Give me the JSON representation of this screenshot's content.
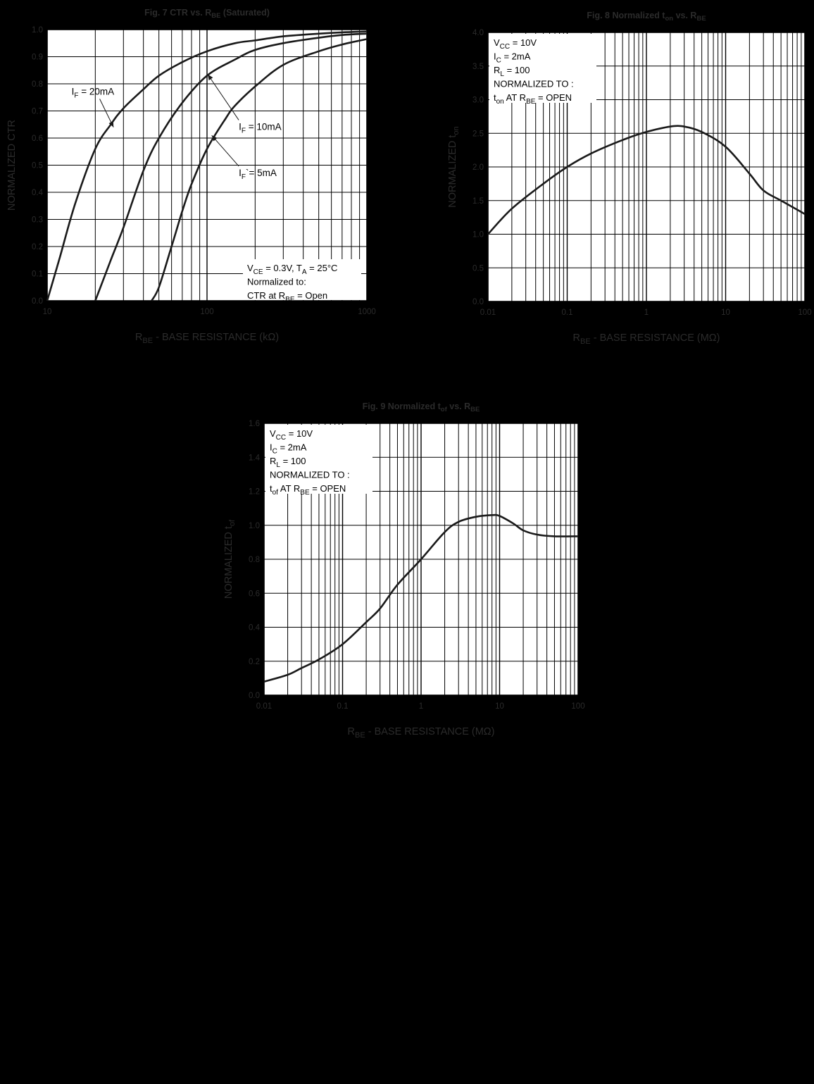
{
  "colors": {
    "page_background": "#000000",
    "plot_background": "#ffffff",
    "grid": "#000000",
    "curve": "#1a1a1a",
    "axis_text": "#2b2b2b",
    "annotation_text": "#000000"
  },
  "chart_data": [
    {
      "id": "fig7",
      "type": "line",
      "title": "Fig. 7  CTR vs. R",
      "title_sub": "BE",
      "title_suffix": " (Saturated)",
      "xlabel_main": "R",
      "xlabel_sub": "BE",
      "xlabel_suffix": " - BASE RESISTANCE (kΩ)",
      "ylabel": "NORMALIZED CTR",
      "xscale": "log",
      "xlim": [
        10,
        1000
      ],
      "ylim": [
        0,
        1.0
      ],
      "grid": true,
      "x_tick_labels": [
        {
          "value": 10,
          "label": "10"
        },
        {
          "value": 100,
          "label": "100"
        },
        {
          "value": 1000,
          "label": "1000"
        }
      ],
      "y_tick_labels": [
        {
          "value": 0,
          "label": "0.0"
        },
        {
          "value": 0.1,
          "label": "0.1"
        },
        {
          "value": 0.2,
          "label": "0.2"
        },
        {
          "value": 0.3,
          "label": "0.3"
        },
        {
          "value": 0.4,
          "label": "0.4"
        },
        {
          "value": 0.5,
          "label": "0.5"
        },
        {
          "value": 0.6,
          "label": "0.6"
        },
        {
          "value": 0.7,
          "label": "0.7"
        },
        {
          "value": 0.8,
          "label": "0.8"
        },
        {
          "value": 0.9,
          "label": "0.9"
        },
        {
          "value": 1.0,
          "label": "1.0"
        }
      ],
      "series": [
        {
          "id": "if20",
          "x": [
            10,
            12,
            15,
            20,
            25,
            30,
            40,
            50,
            70,
            100,
            150,
            200,
            300,
            500,
            700,
            1000
          ],
          "y": [
            0.0,
            0.16,
            0.36,
            0.56,
            0.65,
            0.71,
            0.78,
            0.83,
            0.88,
            0.92,
            0.95,
            0.96,
            0.975,
            0.985,
            0.99,
            0.993
          ]
        },
        {
          "id": "if10",
          "x": [
            20,
            25,
            30,
            40,
            50,
            70,
            100,
            150,
            200,
            300,
            500,
            700,
            1000
          ],
          "y": [
            0.0,
            0.15,
            0.27,
            0.48,
            0.6,
            0.73,
            0.83,
            0.89,
            0.925,
            0.95,
            0.97,
            0.98,
            0.985
          ]
        },
        {
          "id": "if5",
          "x": [
            45,
            50,
            60,
            70,
            80,
            100,
            130,
            150,
            200,
            300,
            500,
            700,
            1000
          ],
          "y": [
            0.0,
            0.05,
            0.2,
            0.33,
            0.43,
            0.56,
            0.67,
            0.72,
            0.79,
            0.87,
            0.92,
            0.945,
            0.965
          ]
        }
      ],
      "series_labels": [
        {
          "series": "if20",
          "main": "I",
          "sub": "F",
          "suffix": " = 20mA",
          "label_x": 14.2,
          "label_y": 0.76,
          "arrow_to_x": 26,
          "arrow_to_y": 0.64
        },
        {
          "series": "if10",
          "main": "I",
          "sub": "F",
          "suffix": " = 10mA",
          "label_x": 158,
          "label_y": 0.63,
          "arrow_to_x": 101,
          "arrow_to_y": 0.835
        },
        {
          "series": "if5",
          "main": "I",
          "sub": "F",
          "suffix": "`= 5mA",
          "label_x": 158,
          "label_y": 0.46,
          "arrow_to_x": 107,
          "arrow_to_y": 0.61
        }
      ],
      "annotation_box": {
        "lines": [
          [
            {
              "t": "V"
            },
            {
              "t": "CE",
              "sub": true
            },
            {
              "t": " = 0.3V, T"
            },
            {
              "t": "A",
              "sub": true
            },
            {
              "t": " = 25°C"
            }
          ],
          [
            {
              "t": "Normalized to:"
            }
          ],
          [
            {
              "t": "CTR at R"
            },
            {
              "t": "BE",
              "sub": true
            },
            {
              "t": " = Open"
            }
          ]
        ],
        "corner": "bottom-right"
      }
    },
    {
      "id": "fig8",
      "type": "line",
      "title": "Fig. 8  Normalized t",
      "title_sub": "on",
      "title_suffix": " vs. R",
      "title_sub2": "BE",
      "xlabel_main": "R",
      "xlabel_sub": "BE",
      "xlabel_suffix": " - BASE RESISTANCE (MΩ)",
      "ylabel": "NORMALIZED t",
      "ylabel_sub": "on",
      "xscale": "log",
      "xlim": [
        0.01,
        100
      ],
      "ylim": [
        0,
        4.0
      ],
      "grid": true,
      "x_tick_labels": [
        {
          "value": 0.01,
          "label": "0.01"
        },
        {
          "value": 0.1,
          "label": "0.1"
        },
        {
          "value": 1,
          "label": "1"
        },
        {
          "value": 10,
          "label": "10"
        },
        {
          "value": 100,
          "label": "100"
        }
      ],
      "y_tick_labels": [
        {
          "value": 0,
          "label": "0.0"
        },
        {
          "value": 0.5,
          "label": "0.5"
        },
        {
          "value": 1.0,
          "label": "1.0"
        },
        {
          "value": 1.5,
          "label": "1.5"
        },
        {
          "value": 2.0,
          "label": "2.0"
        },
        {
          "value": 2.5,
          "label": "2.5"
        },
        {
          "value": 3.0,
          "label": "3.0"
        },
        {
          "value": 3.5,
          "label": "3.5"
        },
        {
          "value": 4.0,
          "label": "4.0"
        }
      ],
      "series": [
        {
          "id": "ton",
          "x": [
            0.01,
            0.02,
            0.05,
            0.1,
            0.2,
            0.5,
            1,
            2,
            3,
            5,
            10,
            20,
            30,
            50,
            100
          ],
          "y": [
            1.0,
            1.38,
            1.75,
            2.0,
            2.2,
            2.4,
            2.52,
            2.6,
            2.6,
            2.52,
            2.3,
            1.9,
            1.65,
            1.5,
            1.3
          ]
        }
      ],
      "annotation_box": {
        "lines": [
          [
            {
              "t": "V"
            },
            {
              "t": "CC",
              "sub": true
            },
            {
              "t": " = 10V"
            }
          ],
          [
            {
              "t": "I"
            },
            {
              "t": "C",
              "sub": true
            },
            {
              "t": " = 2mA"
            }
          ],
          [
            {
              "t": "R"
            },
            {
              "t": "L",
              "sub": true
            },
            {
              "t": " = 100"
            }
          ],
          [
            {
              "t": "NORMALIZED TO :"
            }
          ],
          [
            {
              "t": "t"
            },
            {
              "t": "on",
              "sub": true
            },
            {
              "t": " AT R"
            },
            {
              "t": "BE",
              "sub": true
            },
            {
              "t": " = OPEN"
            }
          ]
        ],
        "corner": "top-left"
      }
    },
    {
      "id": "fig9",
      "type": "line",
      "title": "Fig. 9  Normalized t",
      "title_sub": "of",
      "title_suffix": " vs. R",
      "title_sub2": "BE",
      "xlabel_main": "R",
      "xlabel_sub": "BE",
      "xlabel_suffix": " - BASE RESISTANCE (MΩ)",
      "ylabel": "NORMALIZED t",
      "ylabel_sub": "of",
      "xscale": "log",
      "xlim": [
        0.01,
        100
      ],
      "ylim": [
        0,
        1.6
      ],
      "grid": true,
      "x_tick_labels": [
        {
          "value": 0.01,
          "label": "0.01"
        },
        {
          "value": 0.1,
          "label": "0.1"
        },
        {
          "value": 1,
          "label": "1"
        },
        {
          "value": 10,
          "label": "10"
        },
        {
          "value": 100,
          "label": "100"
        }
      ],
      "y_tick_labels": [
        {
          "value": 0,
          "label": "0.0"
        },
        {
          "value": 0.2,
          "label": "0.2"
        },
        {
          "value": 0.4,
          "label": "0.4"
        },
        {
          "value": 0.6,
          "label": "0.6"
        },
        {
          "value": 0.8,
          "label": "0.8"
        },
        {
          "value": 1.0,
          "label": "1.0"
        },
        {
          "value": 1.2,
          "label": "1.2"
        },
        {
          "value": 1.4,
          "label": "1.4"
        },
        {
          "value": 1.6,
          "label": "1.6"
        }
      ],
      "series": [
        {
          "id": "tof",
          "x": [
            0.01,
            0.02,
            0.03,
            0.05,
            0.1,
            0.2,
            0.3,
            0.5,
            1,
            2,
            3,
            5,
            8,
            10,
            15,
            20,
            30,
            50,
            100
          ],
          "y": [
            0.08,
            0.12,
            0.16,
            0.21,
            0.3,
            0.43,
            0.51,
            0.65,
            0.8,
            0.96,
            1.02,
            1.05,
            1.06,
            1.055,
            1.01,
            0.97,
            0.945,
            0.935,
            0.935
          ]
        }
      ],
      "annotation_box": {
        "lines": [
          [
            {
              "t": "V"
            },
            {
              "t": "CC",
              "sub": true
            },
            {
              "t": " = 10V"
            }
          ],
          [
            {
              "t": "I"
            },
            {
              "t": "C",
              "sub": true
            },
            {
              "t": " = 2mA"
            }
          ],
          [
            {
              "t": "R"
            },
            {
              "t": "L",
              "sub": true
            },
            {
              "t": " = 100"
            }
          ],
          [
            {
              "t": "NORMALIZED TO :"
            }
          ],
          [
            {
              "t": "t"
            },
            {
              "t": "of",
              "sub": true
            },
            {
              "t": "  AT R"
            },
            {
              "t": "BE",
              "sub": true
            },
            {
              "t": " = OPEN"
            }
          ]
        ],
        "corner": "top-left"
      }
    }
  ]
}
